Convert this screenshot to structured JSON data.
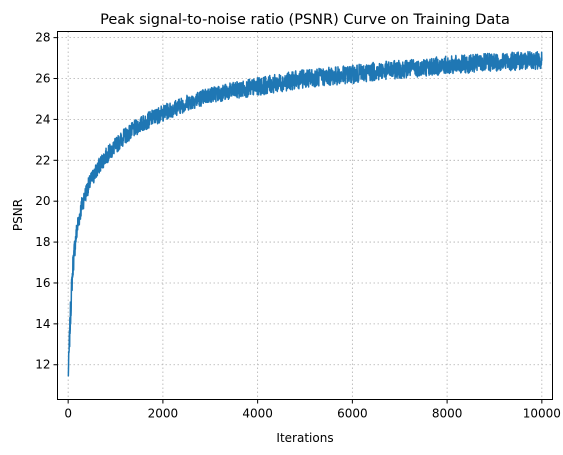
{
  "chart_data": {
    "type": "line",
    "title": "Peak signal-to-noise ratio (PSNR) Curve on Training Data",
    "xlabel": "Iterations",
    "ylabel": "PSNR",
    "xlim": [
      -225,
      10225
    ],
    "ylim": [
      10.3,
      28.3
    ],
    "xticks": [
      0,
      2000,
      4000,
      6000,
      8000,
      10000
    ],
    "yticks": [
      12,
      14,
      16,
      18,
      20,
      22,
      24,
      26,
      28
    ],
    "grid": true,
    "color": "#1f77b4",
    "series": [
      {
        "x": [
          0,
          10,
          25,
          50,
          75,
          100,
          150,
          200,
          250,
          300,
          400,
          500,
          600,
          700,
          800,
          1000,
          1200,
          1500,
          1800,
          2000,
          2500,
          3000,
          3500,
          4000,
          4500,
          5000,
          5500,
          6000,
          6500,
          7000,
          7500,
          8000,
          8500,
          9000,
          9500,
          10000
        ],
        "values": [
          11.4,
          12.0,
          13.0,
          14.5,
          15.8,
          16.8,
          18.0,
          18.8,
          19.4,
          19.9,
          20.6,
          21.1,
          21.5,
          21.9,
          22.2,
          22.7,
          23.2,
          23.7,
          24.1,
          24.3,
          24.8,
          25.2,
          25.4,
          25.6,
          25.8,
          26.0,
          26.1,
          26.2,
          26.35,
          26.45,
          26.55,
          26.65,
          26.72,
          26.8,
          26.85,
          26.9
        ],
        "noise": [
          0.4,
          0.5,
          0.6,
          0.7,
          0.6,
          0.6,
          0.55,
          0.5,
          0.45,
          0.45,
          0.4,
          0.4,
          0.4,
          0.4,
          0.4,
          0.4,
          0.4,
          0.4,
          0.4,
          0.4,
          0.4,
          0.4,
          0.42,
          0.44,
          0.45,
          0.45,
          0.45,
          0.45,
          0.45,
          0.45,
          0.45,
          0.45,
          0.45,
          0.45,
          0.45,
          0.45
        ]
      }
    ]
  }
}
